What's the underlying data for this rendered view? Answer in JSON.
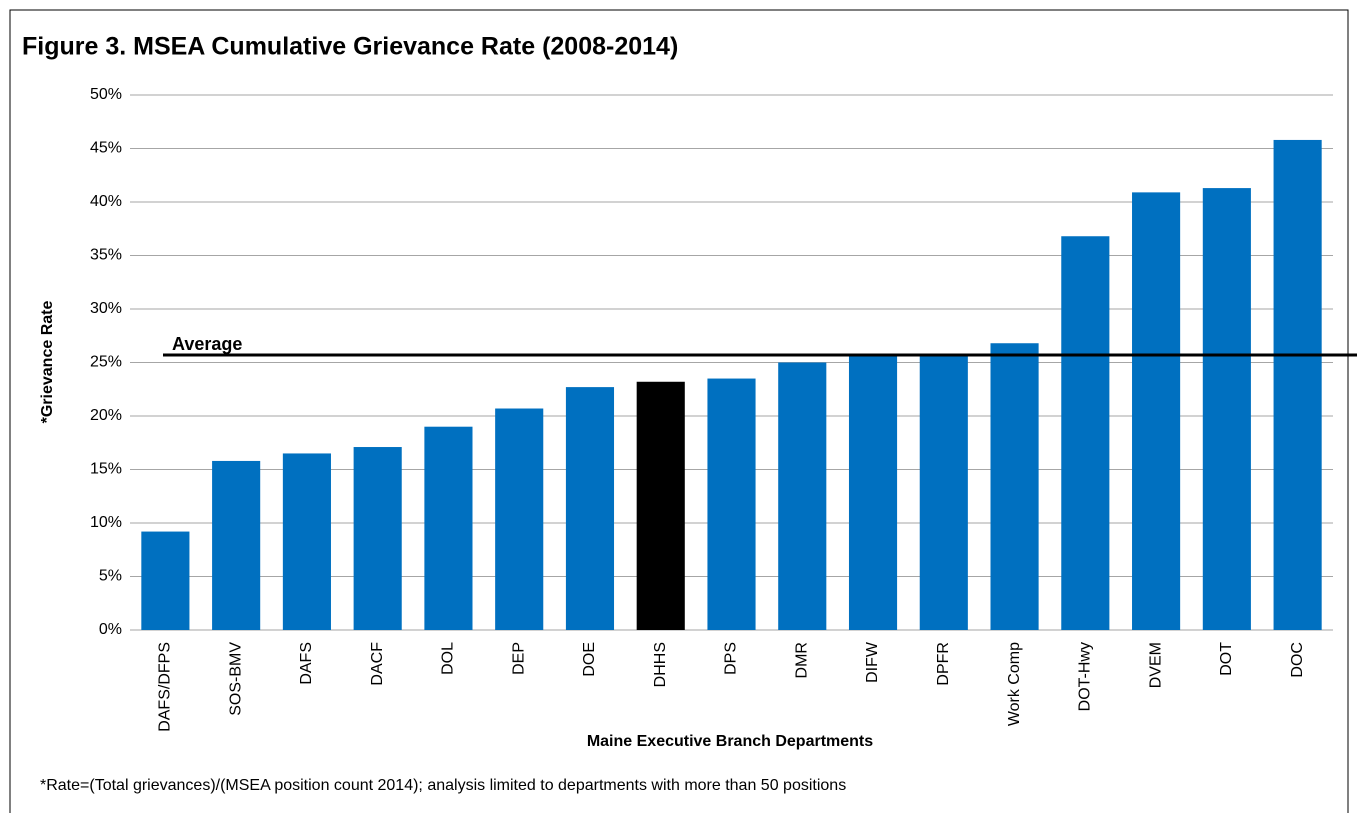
{
  "chart_data": {
    "type": "bar",
    "title": "Figure 3. MSEA Cumulative Grievance Rate (2008-2014)",
    "ylabel": "*Grievance Rate",
    "xlabel": "Maine Executive Branch Departments",
    "note": "*Rate=(Total grievances)/(MSEA position count 2014); analysis limited to departments with more than 50 positions",
    "categories": [
      "DAFS/DFPS",
      "SOS-BMV",
      "DAFS",
      "DACF",
      "DOL",
      "DEP",
      "DOE",
      "DHHS",
      "DPS",
      "DMR",
      "DIFW",
      "DPFR",
      "Work Comp",
      "DOT-Hwy",
      "DVEM",
      "DOT",
      "DOC"
    ],
    "values": [
      9.2,
      15.8,
      16.5,
      17.1,
      19.0,
      20.7,
      22.7,
      23.2,
      23.5,
      25.0,
      25.7,
      25.7,
      26.8,
      36.8,
      40.9,
      41.3,
      45.8
    ],
    "colors": [
      "#0070c0",
      "#0070c0",
      "#0070c0",
      "#0070c0",
      "#0070c0",
      "#0070c0",
      "#0070c0",
      "#000000",
      "#0070c0",
      "#0070c0",
      "#0070c0",
      "#0070c0",
      "#0070c0",
      "#0070c0",
      "#0070c0",
      "#0070c0",
      "#0070c0"
    ],
    "average": {
      "value": 25.7,
      "label": "Average"
    },
    "ylim": [
      0,
      50
    ],
    "yticks": [
      {
        "value": 0,
        "label": "0%"
      },
      {
        "value": 5,
        "label": "5%"
      },
      {
        "value": 10,
        "label": "10%"
      },
      {
        "value": 15,
        "label": "15%"
      },
      {
        "value": 20,
        "label": "20%"
      },
      {
        "value": 25,
        "label": "25%"
      },
      {
        "value": 30,
        "label": "30%"
      },
      {
        "value": 35,
        "label": "35%"
      },
      {
        "value": 40,
        "label": "40%"
      },
      {
        "value": 45,
        "label": "45%"
      },
      {
        "value": 50,
        "label": "50%"
      }
    ],
    "grid": true
  }
}
